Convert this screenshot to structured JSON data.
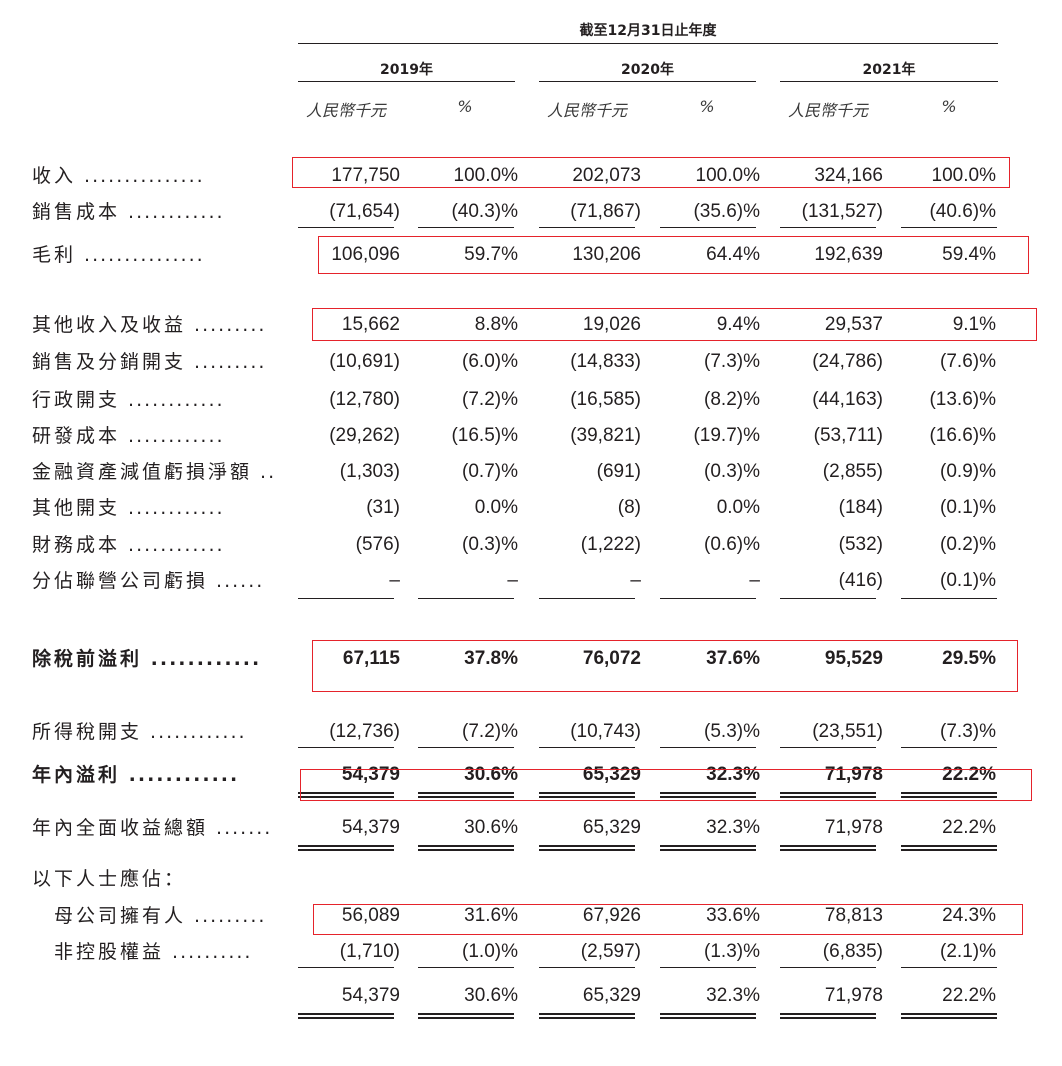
{
  "header": {
    "period_title": "截至12月31日止年度",
    "years": [
      "2019年",
      "2020年",
      "2021年"
    ],
    "unit_labels": [
      "人民幣千元",
      "%",
      "人民幣千元",
      "%",
      "人民幣千元",
      "%"
    ]
  },
  "rows": [
    {
      "label": "收入",
      "values": [
        "177,750",
        "100.0%",
        "202,073",
        "100.0%",
        "324,166",
        "100.0%"
      ]
    },
    {
      "label": "銷售成本",
      "values": [
        "(71,654)",
        "(40.3)%",
        "(71,867)",
        "(35.6)%",
        "(131,527)",
        "(40.6)%"
      ]
    },
    {
      "label": "毛利",
      "values": [
        "106,096",
        "59.7%",
        "130,206",
        "64.4%",
        "192,639",
        "59.4%"
      ]
    },
    {
      "label": "其他收入及收益",
      "values": [
        "15,662",
        "8.8%",
        "19,026",
        "9.4%",
        "29,537",
        "9.1%"
      ]
    },
    {
      "label": "銷售及分銷開支",
      "values": [
        "(10,691)",
        "(6.0)%",
        "(14,833)",
        "(7.3)%",
        "(24,786)",
        "(7.6)%"
      ]
    },
    {
      "label": "行政開支",
      "values": [
        "(12,780)",
        "(7.2)%",
        "(16,585)",
        "(8.2)%",
        "(44,163)",
        "(13.6)%"
      ]
    },
    {
      "label": "研發成本",
      "values": [
        "(29,262)",
        "(16.5)%",
        "(39,821)",
        "(19.7)%",
        "(53,711)",
        "(16.6)%"
      ]
    },
    {
      "label": "金融資產減值虧損淨額",
      "values": [
        "(1,303)",
        "(0.7)%",
        "(691)",
        "(0.3)%",
        "(2,855)",
        "(0.9)%"
      ]
    },
    {
      "label": "其他開支",
      "values": [
        "(31)",
        "0.0%",
        "(8)",
        "0.0%",
        "(184)",
        "(0.1)%"
      ]
    },
    {
      "label": "財務成本",
      "values": [
        "(576)",
        "(0.3)%",
        "(1,222)",
        "(0.6)%",
        "(532)",
        "(0.2)%"
      ]
    },
    {
      "label": "分佔聯營公司虧損",
      "values": [
        "–",
        "–",
        "–",
        "–",
        "(416)",
        "(0.1)%"
      ]
    },
    {
      "label": "除稅前溢利",
      "values": [
        "67,115",
        "37.8%",
        "76,072",
        "37.6%",
        "95,529",
        "29.5%"
      ]
    },
    {
      "label": "所得稅開支",
      "values": [
        "(12,736)",
        "(7.2)%",
        "(10,743)",
        "(5.3)%",
        "(23,551)",
        "(7.3)%"
      ]
    },
    {
      "label": "年內溢利",
      "values": [
        "54,379",
        "30.6%",
        "65,329",
        "32.3%",
        "71,978",
        "22.2%"
      ]
    },
    {
      "label": "年內全面收益總額",
      "values": [
        "54,379",
        "30.6%",
        "65,329",
        "32.3%",
        "71,978",
        "22.2%"
      ]
    },
    {
      "label": "以下人士應佔："
    },
    {
      "label": "母公司擁有人",
      "values": [
        "56,089",
        "31.6%",
        "67,926",
        "33.6%",
        "78,813",
        "24.3%"
      ]
    },
    {
      "label": "非控股權益",
      "values": [
        "(1,710)",
        "(1.0)%",
        "(2,597)",
        "(1.3)%",
        "(6,835)",
        "(2.1)%"
      ]
    },
    {
      "label": "",
      "values": [
        "54,379",
        "30.6%",
        "65,329",
        "32.3%",
        "71,978",
        "22.2%"
      ]
    }
  ],
  "highlight_color": "#e5232b"
}
